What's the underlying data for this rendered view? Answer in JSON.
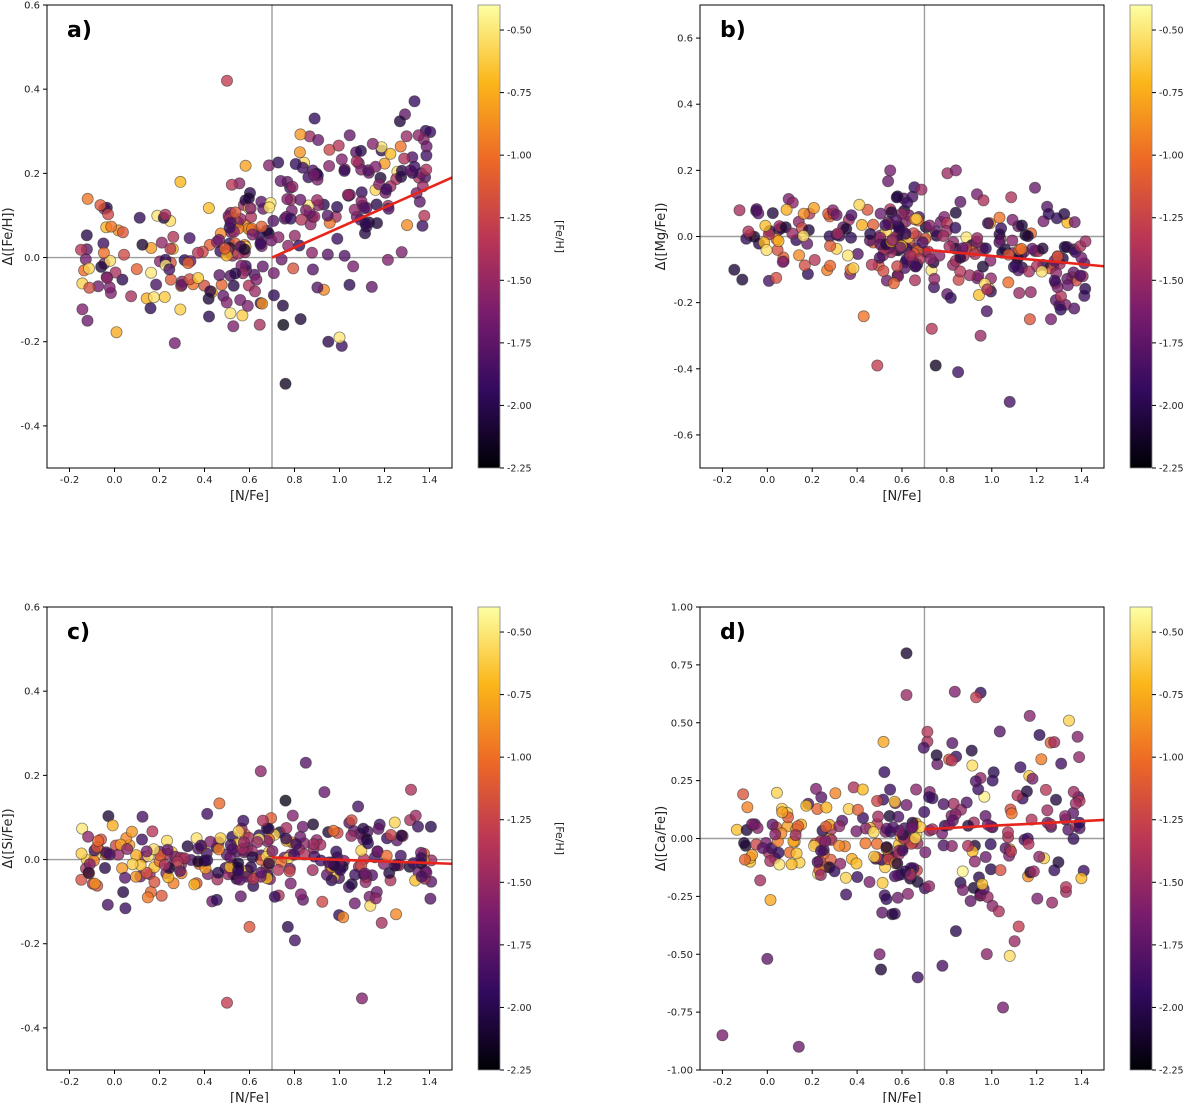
{
  "figure": {
    "colorbar": {
      "label": "[Fe/H]",
      "ticks": [
        -0.5,
        -0.75,
        -1.0,
        -1.25,
        -1.5,
        -1.75,
        -2.0,
        -2.25
      ],
      "range": [
        -2.25,
        -0.4
      ],
      "colormap": "inferno",
      "stops": [
        "#000004",
        "#320a5e",
        "#781c6d",
        "#bc3754",
        "#ed6925",
        "#fbb61a",
        "#fcffa4"
      ]
    }
  },
  "chart_data": [
    {
      "type": "scatter",
      "panel_label": "a)",
      "xlabel": "[N/Fe]",
      "ylabel": "Δ([Fe/H])",
      "xlim": [
        -0.3,
        1.5
      ],
      "ylim": [
        -0.5,
        0.6
      ],
      "xticks": [
        -0.2,
        0.0,
        0.2,
        0.4,
        0.6,
        0.8,
        1.0,
        1.2,
        1.4
      ],
      "yticks": [
        -0.4,
        -0.2,
        0.0,
        0.2,
        0.4,
        0.6
      ],
      "vline_x": 0.7,
      "hline_y": 0.0,
      "fit_line": {
        "x": [
          0.7,
          1.5
        ],
        "y": [
          0.0,
          0.19
        ]
      },
      "spread": [
        0.08,
        0.09
      ],
      "trend": 0.24,
      "outliers": [
        {
          "x": 0.5,
          "y": 0.42,
          "feh": -1.3
        },
        {
          "x": 0.76,
          "y": -0.3,
          "feh": -2.15
        },
        {
          "x": 0.75,
          "y": -0.16,
          "feh": -2.2
        },
        {
          "x": 0.95,
          "y": -0.2,
          "feh": -2.0
        },
        {
          "x": 1.01,
          "y": -0.21,
          "feh": -1.9
        },
        {
          "x": 1.0,
          "y": -0.19,
          "feh": -0.5
        },
        {
          "x": -0.12,
          "y": -0.15,
          "feh": -1.7
        },
        {
          "x": 0.42,
          "y": -0.14,
          "feh": -2.0
        }
      ]
    },
    {
      "type": "scatter",
      "panel_label": "b)",
      "xlabel": "[N/Fe]",
      "ylabel": "Δ([Mg/Fe])",
      "xlim": [
        -0.3,
        1.5
      ],
      "ylim": [
        -0.7,
        0.7
      ],
      "xticks": [
        -0.2,
        0.0,
        0.2,
        0.4,
        0.6,
        0.8,
        1.0,
        1.2,
        1.4
      ],
      "yticks": [
        -0.6,
        -0.4,
        -0.2,
        0.0,
        0.2,
        0.4,
        0.6
      ],
      "vline_x": 0.7,
      "hline_y": 0.0,
      "fit_line": {
        "x": [
          0.7,
          1.5
        ],
        "y": [
          -0.04,
          -0.09
        ]
      },
      "spread": [
        0.06,
        0.09
      ],
      "trend": -0.06,
      "outliers": [
        {
          "x": 0.84,
          "y": 0.2,
          "feh": -1.6
        },
        {
          "x": 0.49,
          "y": -0.39,
          "feh": -1.3
        },
        {
          "x": 0.75,
          "y": -0.39,
          "feh": -2.15
        },
        {
          "x": 0.85,
          "y": -0.41,
          "feh": -1.9
        },
        {
          "x": 1.08,
          "y": -0.5,
          "feh": -1.85
        },
        {
          "x": 0.95,
          "y": -0.3,
          "feh": -1.5
        },
        {
          "x": 1.17,
          "y": -0.25,
          "feh": -1.15
        }
      ]
    },
    {
      "type": "scatter",
      "panel_label": "c)",
      "xlabel": "[N/Fe]",
      "ylabel": "Δ([Si/Fe])",
      "xlim": [
        -0.3,
        1.5
      ],
      "ylim": [
        -0.5,
        0.6
      ],
      "xticks": [
        -0.2,
        0.0,
        0.2,
        0.4,
        0.6,
        0.8,
        1.0,
        1.2,
        1.4
      ],
      "yticks": [
        -0.4,
        -0.2,
        0.0,
        0.2,
        0.4,
        0.6
      ],
      "vline_x": 0.7,
      "hline_y": 0.0,
      "fit_line": {
        "x": [
          0.7,
          1.5
        ],
        "y": [
          0.005,
          -0.01
        ]
      },
      "spread": [
        0.045,
        0.06
      ],
      "trend": -0.01,
      "outliers": [
        {
          "x": 0.85,
          "y": 0.23,
          "feh": -1.8
        },
        {
          "x": 0.65,
          "y": 0.21,
          "feh": -1.55
        },
        {
          "x": 0.5,
          "y": -0.34,
          "feh": -1.3
        },
        {
          "x": 1.1,
          "y": -0.33,
          "feh": -1.6
        },
        {
          "x": 0.76,
          "y": 0.14,
          "feh": -2.2
        },
        {
          "x": 0.77,
          "y": -0.16,
          "feh": -2.0
        },
        {
          "x": 0.6,
          "y": -0.16,
          "feh": -1.15
        }
      ]
    },
    {
      "type": "scatter",
      "panel_label": "d)",
      "xlabel": "[N/Fe]",
      "ylabel": "Δ([Ca/Fe])",
      "xlim": [
        -0.3,
        1.5
      ],
      "ylim": [
        -1.0,
        1.0
      ],
      "xticks": [
        -0.2,
        0.0,
        0.2,
        0.4,
        0.6,
        0.8,
        1.0,
        1.2,
        1.4
      ],
      "yticks": [
        -1.0,
        -0.75,
        -0.5,
        -0.25,
        0.0,
        0.25,
        0.5,
        0.75,
        1.0
      ],
      "vline_x": 0.7,
      "hline_y": 0.0,
      "fit_line": {
        "x": [
          0.7,
          1.5
        ],
        "y": [
          0.04,
          0.08
        ]
      },
      "spread": [
        0.1,
        0.22
      ],
      "trend": 0.05,
      "outliers": [
        {
          "x": 0.62,
          "y": 0.8,
          "feh": -2.1
        },
        {
          "x": 0.95,
          "y": 0.63,
          "feh": -1.95
        },
        {
          "x": 0.93,
          "y": 0.61,
          "feh": -1.3
        },
        {
          "x": 0.62,
          "y": 0.62,
          "feh": -1.5
        },
        {
          "x": -0.2,
          "y": -0.85,
          "feh": -1.65
        },
        {
          "x": 0.14,
          "y": -0.9,
          "feh": -1.7
        },
        {
          "x": 1.05,
          "y": -0.73,
          "feh": -1.65
        },
        {
          "x": 0.67,
          "y": -0.6,
          "feh": -1.9
        },
        {
          "x": 0.78,
          "y": -0.55,
          "feh": -1.85
        },
        {
          "x": 0.84,
          "y": -0.4,
          "feh": -2.0
        },
        {
          "x": 0.0,
          "y": -0.52,
          "feh": -1.75
        },
        {
          "x": 0.5,
          "y": -0.5,
          "feh": -1.65
        },
        {
          "x": 1.12,
          "y": -0.38,
          "feh": -1.3
        }
      ]
    }
  ]
}
